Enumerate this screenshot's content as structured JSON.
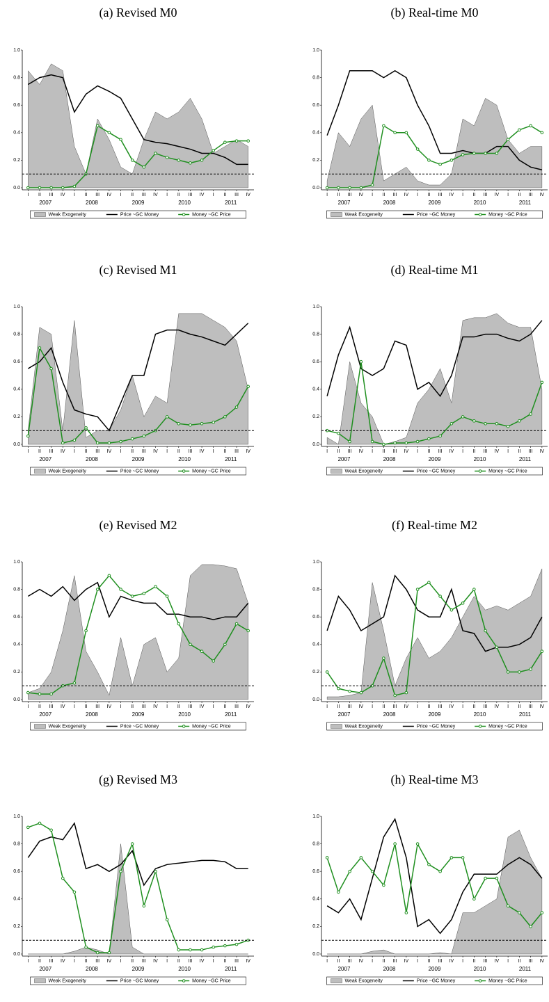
{
  "chart_data": [
    {
      "type": "line",
      "title": "(a) Revised M0",
      "categories": [
        "I",
        "II",
        "III",
        "IV",
        "I",
        "II",
        "III",
        "IV",
        "I",
        "II",
        "III",
        "IV",
        "I",
        "II",
        "III",
        "IV",
        "I",
        "II",
        "III",
        "IV"
      ],
      "years": [
        "2007",
        "2008",
        "2009",
        "2010",
        "2011"
      ],
      "ylim": [
        0,
        1
      ],
      "yticks": [
        {
          "value": 0,
          "label": "0.0"
        },
        0.2,
        0.4,
        0.6,
        0.8,
        {
          "value": 1,
          "label": "1.0"
        }
      ],
      "reference_line": 0.1,
      "series": [
        {
          "name": "Weak Exogeneity",
          "type": "area",
          "color": "#bebebe",
          "values": [
            0.85,
            0.75,
            0.9,
            0.85,
            0.3,
            0.1,
            0.5,
            0.35,
            0.15,
            0.1,
            0.35,
            0.55,
            0.5,
            0.55,
            0.65,
            0.5,
            0.25,
            0.3,
            0.35,
            0.3
          ]
        },
        {
          "name": "Price ~GC Money",
          "type": "line",
          "color": "#000000",
          "values": [
            0.75,
            0.8,
            0.82,
            0.8,
            0.55,
            0.68,
            0.74,
            0.7,
            0.65,
            0.5,
            0.35,
            0.33,
            0.32,
            0.3,
            0.28,
            0.25,
            0.25,
            0.22,
            0.17,
            0.17
          ]
        },
        {
          "name": "Money ~GC Price",
          "type": "line",
          "markers": true,
          "color": "#1f8f1f",
          "values": [
            0,
            0,
            0,
            0,
            0.01,
            0.1,
            0.45,
            0.4,
            0.35,
            0.2,
            0.15,
            0.25,
            0.22,
            0.2,
            0.18,
            0.2,
            0.27,
            0.33,
            0.34,
            0.34
          ]
        }
      ]
    },
    {
      "type": "line",
      "title": "(b) Real-time M0",
      "categories": [
        "I",
        "II",
        "III",
        "IV",
        "I",
        "II",
        "III",
        "IV",
        "I",
        "II",
        "III",
        "IV",
        "I",
        "II",
        "III",
        "IV",
        "I",
        "II",
        "III",
        "IV"
      ],
      "years": [
        "2007",
        "2008",
        "2009",
        "2010",
        "2011"
      ],
      "ylim": [
        0,
        1
      ],
      "yticks": [
        {
          "value": 0,
          "label": "0.0"
        },
        0.2,
        0.4,
        0.6,
        0.8,
        {
          "value": 1,
          "label": "1.0"
        }
      ],
      "reference_line": 0.1,
      "series": [
        {
          "name": "Weak Exogeneity",
          "type": "area",
          "color": "#bebebe",
          "values": [
            0.05,
            0.4,
            0.3,
            0.5,
            0.6,
            0.05,
            0.1,
            0.15,
            0.05,
            0.02,
            0.02,
            0.1,
            0.5,
            0.45,
            0.65,
            0.6,
            0.35,
            0.25,
            0.3,
            0.3
          ]
        },
        {
          "name": "Price ~GC Money",
          "type": "line",
          "color": "#000000",
          "values": [
            0.38,
            0.6,
            0.85,
            0.85,
            0.85,
            0.8,
            0.85,
            0.8,
            0.6,
            0.45,
            0.25,
            0.25,
            0.27,
            0.25,
            0.25,
            0.3,
            0.3,
            0.2,
            0.15,
            0.13
          ]
        },
        {
          "name": "Money ~GC Price",
          "type": "line",
          "markers": true,
          "color": "#1f8f1f",
          "values": [
            0,
            0,
            0,
            0,
            0.02,
            0.45,
            0.4,
            0.4,
            0.28,
            0.2,
            0.17,
            0.2,
            0.24,
            0.25,
            0.25,
            0.25,
            0.35,
            0.42,
            0.45,
            0.4
          ]
        }
      ]
    },
    {
      "type": "line",
      "title": "(c) Revised M1",
      "categories": [
        "I",
        "II",
        "III",
        "IV",
        "I",
        "II",
        "III",
        "IV",
        "I",
        "II",
        "III",
        "IV",
        "I",
        "II",
        "III",
        "IV",
        "I",
        "II",
        "III",
        "IV"
      ],
      "years": [
        "2007",
        "2008",
        "2009",
        "2010",
        "2011"
      ],
      "ylim": [
        0,
        1
      ],
      "yticks": [
        {
          "value": 0,
          "label": "0.0"
        },
        0.2,
        0.4,
        0.6,
        0.8,
        {
          "value": 1,
          "label": "1.0"
        }
      ],
      "reference_line": 0.1,
      "series": [
        {
          "name": "Weak Exogeneity",
          "type": "area",
          "color": "#bebebe",
          "values": [
            0.1,
            0.85,
            0.8,
            0.1,
            0.9,
            0.05,
            0.1,
            0.1,
            0.25,
            0.5,
            0.2,
            0.35,
            0.3,
            0.95,
            0.95,
            0.95,
            0.9,
            0.85,
            0.75,
            0.4
          ]
        },
        {
          "name": "Price ~GC Money",
          "type": "line",
          "color": "#000000",
          "values": [
            0.55,
            0.6,
            0.7,
            0.45,
            0.25,
            0.22,
            0.2,
            0.1,
            0.3,
            0.5,
            0.5,
            0.8,
            0.83,
            0.83,
            0.8,
            0.78,
            0.75,
            0.72,
            0.8,
            0.88
          ]
        },
        {
          "name": "Money ~GC Price",
          "type": "line",
          "markers": true,
          "color": "#1f8f1f",
          "values": [
            0.06,
            0.7,
            0.55,
            0.01,
            0.03,
            0.12,
            0.01,
            0.01,
            0.02,
            0.04,
            0.06,
            0.1,
            0.2,
            0.15,
            0.14,
            0.15,
            0.16,
            0.2,
            0.27,
            0.42
          ]
        }
      ]
    },
    {
      "type": "line",
      "title": "(d) Real-time M1",
      "categories": [
        "I",
        "II",
        "III",
        "IV",
        "I",
        "II",
        "III",
        "IV",
        "I",
        "II",
        "III",
        "IV",
        "I",
        "II",
        "III",
        "IV",
        "I",
        "II",
        "III",
        "IV"
      ],
      "years": [
        "2007",
        "2008",
        "2009",
        "2010",
        "2011"
      ],
      "ylim": [
        0,
        1
      ],
      "yticks": [
        {
          "value": 0,
          "label": "0.0"
        },
        0.2,
        0.4,
        0.6,
        0.8,
        {
          "value": 1,
          "label": "1.0"
        }
      ],
      "reference_line": 0.1,
      "series": [
        {
          "name": "Weak Exogeneity",
          "type": "area",
          "color": "#bebebe",
          "values": [
            0.05,
            0,
            0.6,
            0.3,
            0.2,
            0,
            0.02,
            0.05,
            0.3,
            0.4,
            0.55,
            0.3,
            0.9,
            0.92,
            0.92,
            0.95,
            0.88,
            0.85,
            0.85,
            0.4
          ]
        },
        {
          "name": "Price ~GC Money",
          "type": "line",
          "color": "#000000",
          "values": [
            0.35,
            0.65,
            0.85,
            0.55,
            0.5,
            0.55,
            0.75,
            0.72,
            0.4,
            0.45,
            0.35,
            0.5,
            0.78,
            0.78,
            0.8,
            0.8,
            0.77,
            0.75,
            0.8,
            0.9
          ]
        },
        {
          "name": "Money ~GC Price",
          "type": "line",
          "markers": true,
          "color": "#1f8f1f",
          "values": [
            0.1,
            0.08,
            0.02,
            0.6,
            0.02,
            0,
            0.01,
            0.01,
            0.02,
            0.04,
            0.06,
            0.15,
            0.2,
            0.17,
            0.15,
            0.15,
            0.13,
            0.17,
            0.22,
            0.45
          ]
        }
      ]
    },
    {
      "type": "line",
      "title": "(e) Revised M2",
      "categories": [
        "I",
        "II",
        "III",
        "IV",
        "I",
        "II",
        "III",
        "IV",
        "I",
        "II",
        "III",
        "IV",
        "I",
        "II",
        "III",
        "IV",
        "I",
        "II",
        "III",
        "IV"
      ],
      "years": [
        "2007",
        "2008",
        "2009",
        "2010",
        "2011"
      ],
      "ylim": [
        0,
        1
      ],
      "yticks": [
        {
          "value": 0,
          "label": "0.0"
        },
        0.2,
        0.4,
        0.6,
        0.8,
        {
          "value": 1,
          "label": "1.0"
        }
      ],
      "reference_line": 0.1,
      "series": [
        {
          "name": "Weak Exogeneity",
          "type": "area",
          "color": "#bebebe",
          "values": [
            0.05,
            0.08,
            0.2,
            0.5,
            0.9,
            0.35,
            0.2,
            0.03,
            0.45,
            0.1,
            0.4,
            0.45,
            0.2,
            0.3,
            0.9,
            0.98,
            0.98,
            0.97,
            0.95,
            0.7
          ]
        },
        {
          "name": "Price ~GC Money",
          "type": "line",
          "color": "#000000",
          "values": [
            0.75,
            0.8,
            0.75,
            0.82,
            0.72,
            0.8,
            0.85,
            0.6,
            0.75,
            0.72,
            0.7,
            0.7,
            0.62,
            0.62,
            0.6,
            0.6,
            0.58,
            0.6,
            0.6,
            0.7
          ]
        },
        {
          "name": "Money ~GC Price",
          "type": "line",
          "markers": true,
          "color": "#1f8f1f",
          "values": [
            0.05,
            0.04,
            0.04,
            0.1,
            0.12,
            0.5,
            0.8,
            0.9,
            0.8,
            0.75,
            0.77,
            0.82,
            0.75,
            0.55,
            0.4,
            0.35,
            0.28,
            0.4,
            0.55,
            0.5
          ]
        }
      ]
    },
    {
      "type": "line",
      "title": "(f) Real-time M2",
      "categories": [
        "I",
        "II",
        "III",
        "IV",
        "I",
        "II",
        "III",
        "IV",
        "I",
        "II",
        "III",
        "IV",
        "I",
        "II",
        "III",
        "IV",
        "I",
        "II",
        "III",
        "IV"
      ],
      "years": [
        "2007",
        "2008",
        "2009",
        "2010",
        "2011"
      ],
      "ylim": [
        0,
        1
      ],
      "yticks": [
        {
          "value": 0,
          "label": "0.0"
        },
        0.2,
        0.4,
        0.6,
        0.8,
        {
          "value": 1,
          "label": "1.0"
        }
      ],
      "reference_line": 0.1,
      "series": [
        {
          "name": "Weak Exogeneity",
          "type": "area",
          "color": "#bebebe",
          "values": [
            0.02,
            0.02,
            0.03,
            0.05,
            0.85,
            0.5,
            0.1,
            0.3,
            0.45,
            0.3,
            0.35,
            0.45,
            0.6,
            0.75,
            0.65,
            0.68,
            0.65,
            0.7,
            0.75,
            0.95
          ]
        },
        {
          "name": "Price ~GC Money",
          "type": "line",
          "color": "#000000",
          "values": [
            0.5,
            0.75,
            0.65,
            0.5,
            0.55,
            0.6,
            0.9,
            0.8,
            0.65,
            0.6,
            0.6,
            0.8,
            0.5,
            0.48,
            0.35,
            0.38,
            0.38,
            0.4,
            0.45,
            0.6
          ]
        },
        {
          "name": "Money ~GC Price",
          "type": "line",
          "markers": true,
          "color": "#1f8f1f",
          "values": [
            0.2,
            0.08,
            0.06,
            0.05,
            0.1,
            0.3,
            0.03,
            0.05,
            0.8,
            0.85,
            0.75,
            0.65,
            0.7,
            0.8,
            0.5,
            0.38,
            0.2,
            0.2,
            0.22,
            0.35
          ]
        }
      ]
    },
    {
      "type": "line",
      "title": "(g) Revised M3",
      "categories": [
        "I",
        "II",
        "III",
        "IV",
        "I",
        "II",
        "III",
        "IV",
        "I",
        "II",
        "III",
        "IV",
        "I",
        "II",
        "III",
        "IV",
        "I",
        "II",
        "III",
        "IV"
      ],
      "years": [
        "2007",
        "2008",
        "2009",
        "2010",
        "2011"
      ],
      "ylim": [
        0,
        1
      ],
      "yticks": [
        {
          "value": 0,
          "label": "0.0"
        },
        0.2,
        0.4,
        0.6,
        0.8,
        {
          "value": 1,
          "label": "1.0"
        }
      ],
      "reference_line": 0.1,
      "series": [
        {
          "name": "Weak Exogeneity",
          "type": "area",
          "color": "#bebebe",
          "values": [
            0,
            0,
            0,
            0,
            0.02,
            0.05,
            0.03,
            0,
            0.8,
            0.05,
            0,
            0,
            0,
            0,
            0,
            0,
            0,
            0,
            0,
            0
          ]
        },
        {
          "name": "Price ~GC Money",
          "type": "line",
          "color": "#000000",
          "values": [
            0.7,
            0.82,
            0.85,
            0.83,
            0.95,
            0.62,
            0.65,
            0.6,
            0.65,
            0.75,
            0.5,
            0.62,
            0.65,
            0.66,
            0.67,
            0.68,
            0.68,
            0.67,
            0.62,
            0.62
          ]
        },
        {
          "name": "Money ~GC Price",
          "type": "line",
          "markers": true,
          "color": "#1f8f1f",
          "values": [
            0.92,
            0.95,
            0.9,
            0.55,
            0.45,
            0.05,
            0.01,
            0.01,
            0.6,
            0.8,
            0.35,
            0.6,
            0.25,
            0.03,
            0.03,
            0.03,
            0.05,
            0.06,
            0.07,
            0.1
          ]
        }
      ]
    },
    {
      "type": "line",
      "title": "(h) Real-time M3",
      "categories": [
        "I",
        "II",
        "III",
        "IV",
        "I",
        "II",
        "III",
        "IV",
        "I",
        "II",
        "III",
        "IV",
        "I",
        "II",
        "III",
        "IV",
        "I",
        "II",
        "III",
        "IV"
      ],
      "years": [
        "2007",
        "2008",
        "2009",
        "2010",
        "2011"
      ],
      "ylim": [
        0,
        1
      ],
      "yticks": [
        {
          "value": 0,
          "label": "0.0"
        },
        0.2,
        0.4,
        0.6,
        0.8,
        {
          "value": 1,
          "label": "1.0"
        }
      ],
      "reference_line": 0.1,
      "series": [
        {
          "name": "Weak Exogeneity",
          "type": "area",
          "color": "#bebebe",
          "values": [
            0,
            0,
            0,
            0,
            0.02,
            0.03,
            0,
            0,
            0,
            0,
            0.01,
            0,
            0.3,
            0.3,
            0.35,
            0.4,
            0.85,
            0.9,
            0.7,
            0.55
          ]
        },
        {
          "name": "Price ~GC Money",
          "type": "line",
          "color": "#000000",
          "values": [
            0.35,
            0.3,
            0.4,
            0.25,
            0.55,
            0.85,
            0.98,
            0.7,
            0.2,
            0.25,
            0.15,
            0.25,
            0.45,
            0.58,
            0.58,
            0.58,
            0.65,
            0.7,
            0.65,
            0.55
          ]
        },
        {
          "name": "Money ~GC Price",
          "type": "line",
          "markers": true,
          "color": "#1f8f1f",
          "values": [
            0.7,
            0.45,
            0.6,
            0.7,
            0.6,
            0.5,
            0.8,
            0.3,
            0.8,
            0.65,
            0.6,
            0.7,
            0.7,
            0.4,
            0.55,
            0.55,
            0.35,
            0.3,
            0.2,
            0.3
          ]
        }
      ]
    }
  ]
}
